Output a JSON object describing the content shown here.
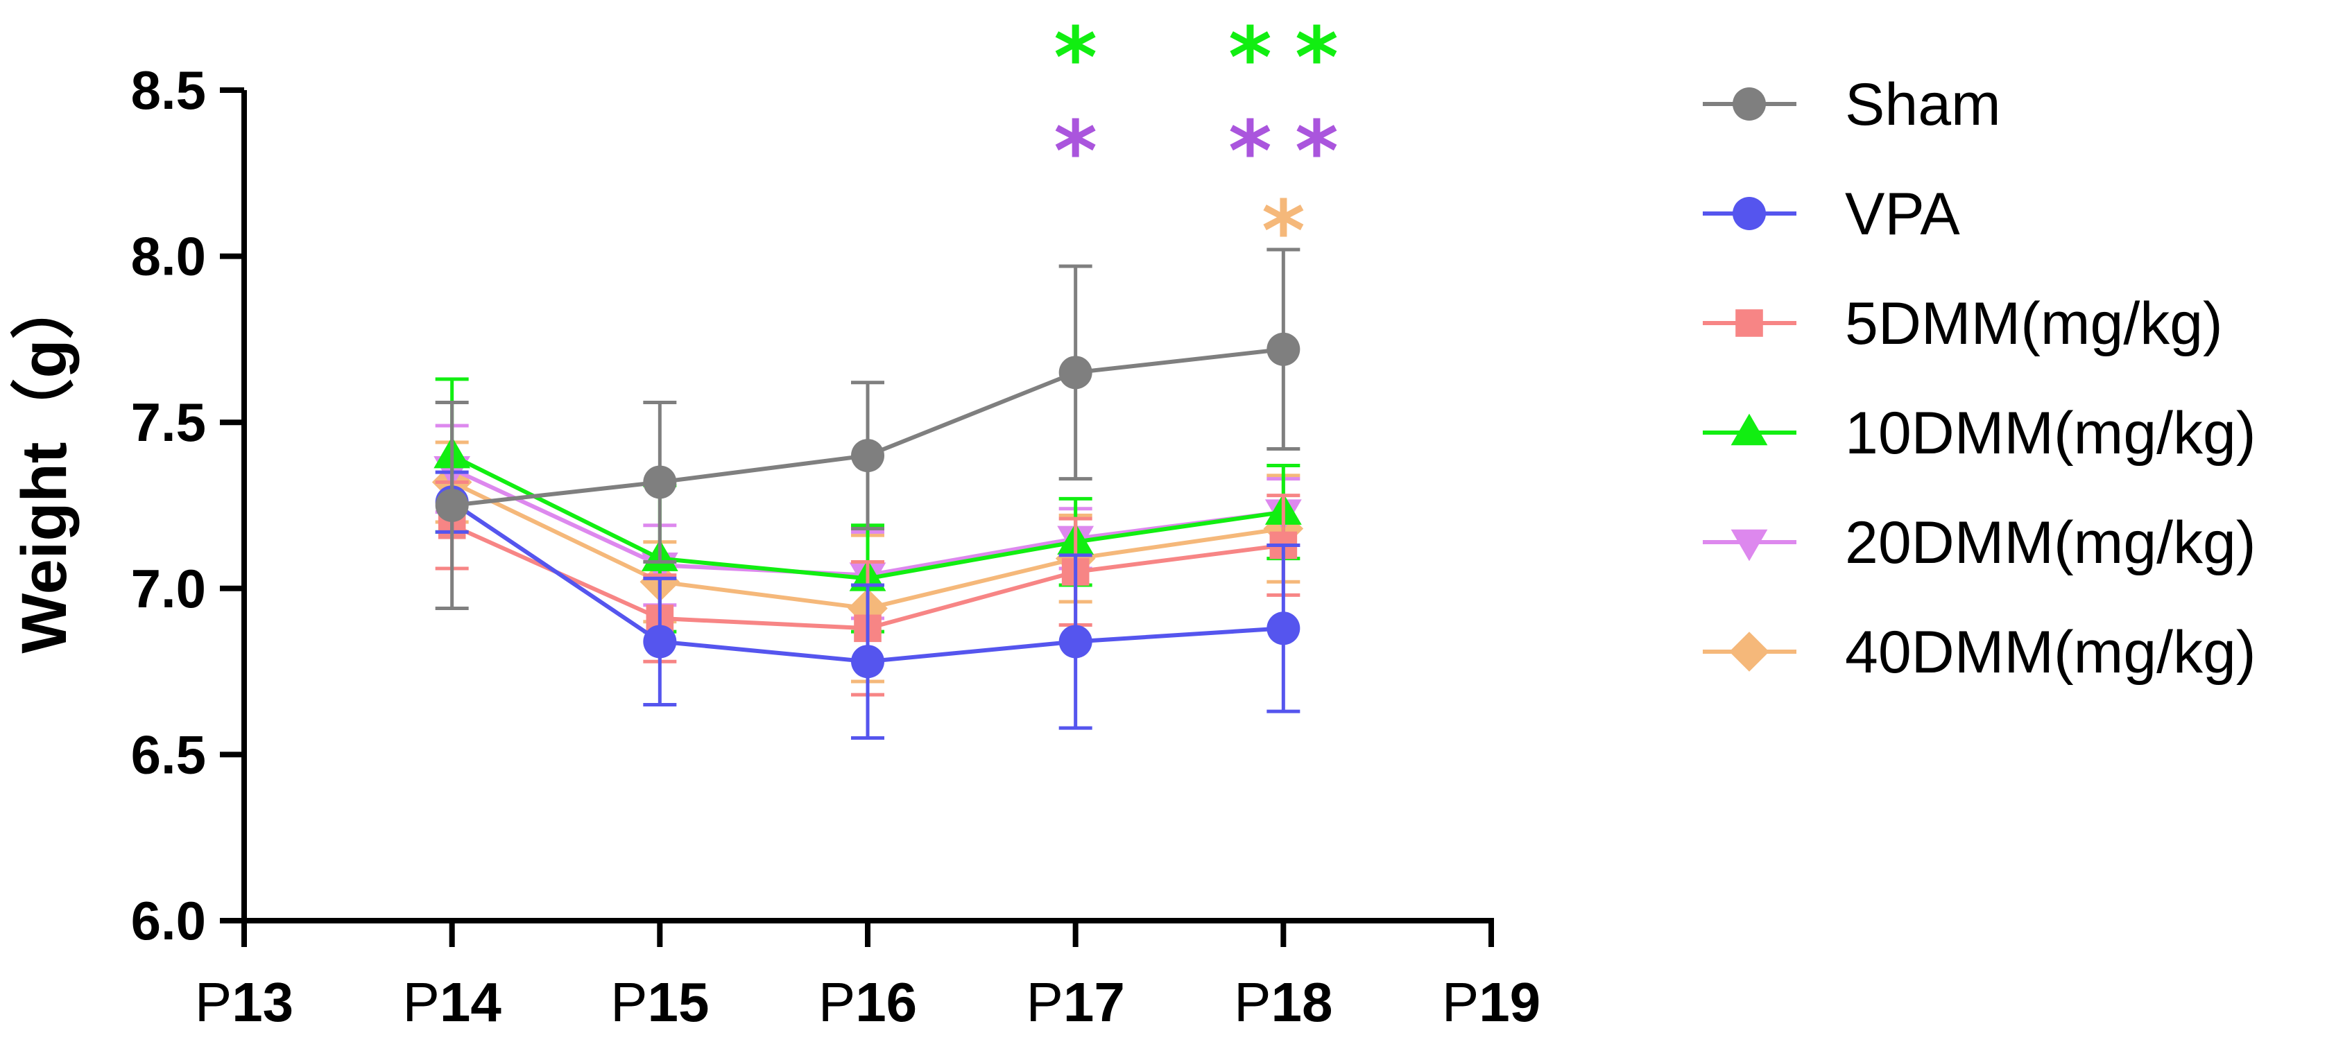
{
  "chart_data": {
    "type": "line",
    "title": "",
    "xlabel": "",
    "ylabel": "Weight（g）",
    "ylim": [
      6.0,
      8.5
    ],
    "yticks": [
      "6.0",
      "6.5",
      "7.0",
      "7.5",
      "8.0",
      "8.5"
    ],
    "x_tick_labels": [
      {
        "prefix": "P",
        "num": "13"
      },
      {
        "prefix": "P",
        "num": "14"
      },
      {
        "prefix": "P",
        "num": "15"
      },
      {
        "prefix": "P",
        "num": "16"
      },
      {
        "prefix": "P",
        "num": "17"
      },
      {
        "prefix": "P",
        "num": "18"
      },
      {
        "prefix": "P",
        "num": "19"
      }
    ],
    "x_range": [
      13,
      19
    ],
    "x": [
      14,
      15,
      16,
      17,
      18
    ],
    "series": [
      {
        "name": "Sham",
        "color": "#7f7f7f",
        "marker": "circle",
        "values": [
          7.25,
          7.32,
          7.4,
          7.65,
          7.72
        ],
        "errors": [
          0.31,
          0.24,
          0.22,
          0.32,
          0.3
        ]
      },
      {
        "name": "VPA",
        "color": "#5555ee",
        "marker": "circle",
        "values": [
          7.26,
          6.84,
          6.78,
          6.84,
          6.88
        ],
        "errors": [
          0.09,
          0.19,
          0.23,
          0.26,
          0.25
        ]
      },
      {
        "name": "5DMM(mg/kg)",
        "color": "#f78585",
        "marker": "square",
        "values": [
          7.19,
          6.91,
          6.88,
          7.05,
          7.13
        ],
        "errors": [
          0.13,
          0.13,
          0.2,
          0.16,
          0.15
        ]
      },
      {
        "name": "10DMM(mg/kg)",
        "color": "#11ee11",
        "marker": "triangle-up",
        "values": [
          7.4,
          7.09,
          7.03,
          7.14,
          7.23
        ],
        "errors": [
          0.23,
          0.22,
          0.16,
          0.13,
          0.14
        ]
      },
      {
        "name": "20DMM(mg/kg)",
        "color": "#dd88ee",
        "marker": "triangle-down",
        "values": [
          7.36,
          7.07,
          7.04,
          7.15,
          7.23
        ],
        "errors": [
          0.13,
          0.12,
          0.13,
          0.09,
          0.1
        ]
      },
      {
        "name": "40DMM(mg/kg)",
        "color": "#f5b87a",
        "marker": "diamond",
        "values": [
          7.32,
          7.02,
          6.94,
          7.09,
          7.18
        ],
        "errors": [
          0.12,
          0.12,
          0.22,
          0.13,
          0.16
        ]
      }
    ],
    "significance": [
      {
        "x": 17,
        "offset": 0,
        "row": 0,
        "symbol": "*",
        "color": "#11ee11"
      },
      {
        "x": 18,
        "offset": -1,
        "row": 0,
        "symbol": "*",
        "color": "#11ee11"
      },
      {
        "x": 18,
        "offset": 1,
        "row": 0,
        "symbol": "*",
        "color": "#11ee11"
      },
      {
        "x": 17,
        "offset": 0,
        "row": 1,
        "symbol": "*",
        "color": "#aa55dd"
      },
      {
        "x": 18,
        "offset": -1,
        "row": 1,
        "symbol": "*",
        "color": "#aa55dd"
      },
      {
        "x": 18,
        "offset": 1,
        "row": 1,
        "symbol": "*",
        "color": "#aa55dd"
      },
      {
        "x": 18,
        "offset": 0,
        "row": 2,
        "symbol": "*",
        "color": "#f5b87a"
      }
    ],
    "legend": {
      "position": "right"
    }
  }
}
